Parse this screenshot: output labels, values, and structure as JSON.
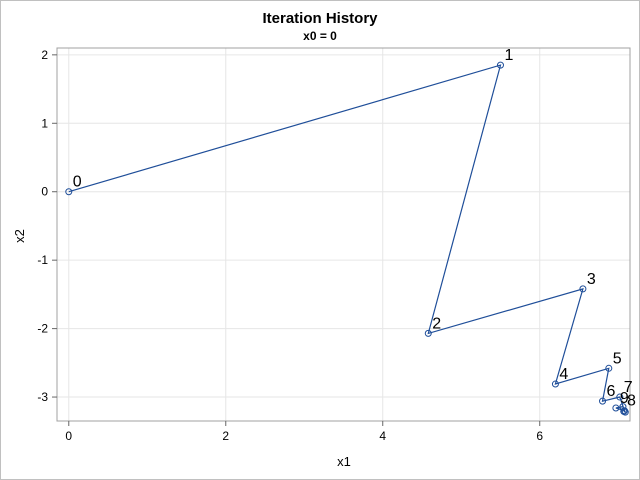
{
  "chart_data": {
    "type": "line",
    "title": "Iteration History",
    "subtitle": "x0 = 0",
    "xlabel": "x1",
    "ylabel": "x2",
    "xlim": [
      -0.15,
      7.15
    ],
    "ylim": [
      -3.35,
      2.1
    ],
    "xticks": [
      0,
      2,
      4,
      6
    ],
    "yticks": [
      2,
      1,
      0,
      -1,
      -2,
      -3
    ],
    "grid": true,
    "legend": "none",
    "series_color": "#1f4e99",
    "points": [
      {
        "label": "0",
        "x": 0.0,
        "y": 0.0
      },
      {
        "label": "1",
        "x": 5.5,
        "y": 1.85
      },
      {
        "label": "2",
        "x": 4.58,
        "y": -2.07
      },
      {
        "label": "3",
        "x": 6.55,
        "y": -1.42
      },
      {
        "label": "4",
        "x": 6.2,
        "y": -2.81
      },
      {
        "label": "5",
        "x": 6.88,
        "y": -2.58
      },
      {
        "label": "6",
        "x": 6.8,
        "y": -3.06
      },
      {
        "label": "7",
        "x": 7.02,
        "y": -3.0
      },
      {
        "label": "8",
        "x": 7.08,
        "y": -3.2
      },
      {
        "label": "9",
        "x": 6.97,
        "y": -3.16
      }
    ],
    "tail": [
      {
        "x": 7.06,
        "y": -3.14
      },
      {
        "x": 7.09,
        "y": -3.22
      },
      {
        "x": 7.07,
        "y": -3.21
      }
    ]
  }
}
